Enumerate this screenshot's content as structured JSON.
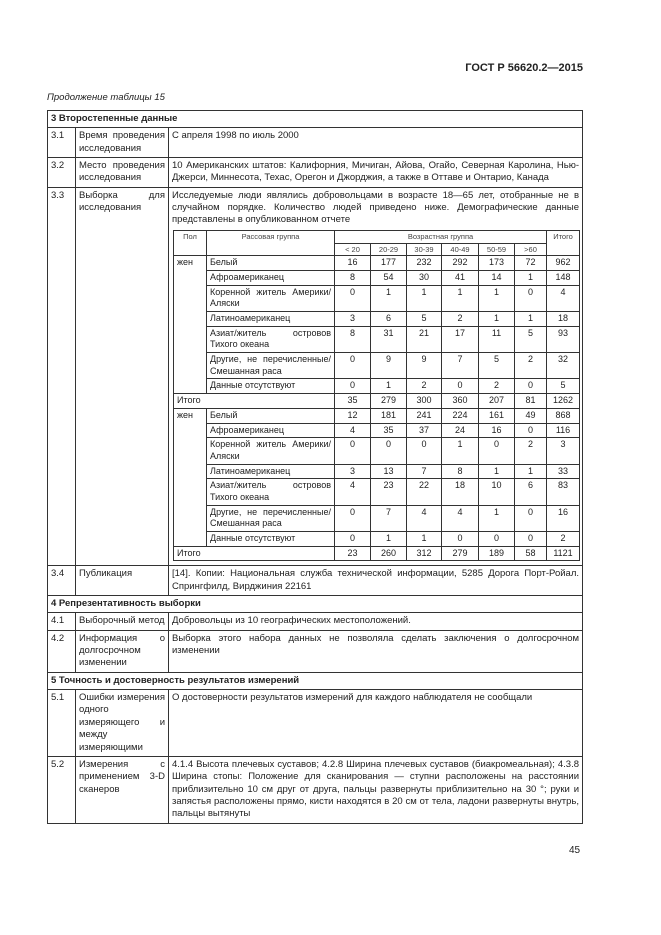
{
  "header": {
    "doc_id": "ГОСТ Р 56620.2—2015",
    "continuation": "Продолжение таблицы 15"
  },
  "table": {
    "sections": [
      {
        "title": "3 Второстепенные данные",
        "rows": [
          {
            "num": "3.1",
            "label": "Время проведения исследования",
            "content": "С апреля 1998 по июль 2000"
          },
          {
            "num": "3.2",
            "label": "Место проведения исследования",
            "content": "10 Американских штатов: Калифорния, Мичиган, Айова, Огайо, Северная Каролина, Нью-Джерси, Миннесота, Техас, Орегон и Джорджия, а также в Оттаве и Онтарио, Канада"
          },
          {
            "num": "3.3",
            "label": "Выборка для исследования",
            "content": "Исследуемые люди являлись добровольцами в возрасте 18—65 лет, отобранные не в случайном порядке. Количество людей приведено ниже. Демографические данные представлены в опубликованном отчете",
            "sample_table": {
              "sex_header": "Пол",
              "group_header": "Рассовая группа",
              "age_header": "Возрастная группа",
              "age_groups": [
                "< 20",
                "20-29",
                "30-39",
                "40-49",
                "50-59",
                ">60"
              ],
              "total_header": "Итого",
              "blocks": [
                {
                  "sex": "жен",
                  "rows": [
                    {
                      "group": "Белый",
                      "values": [
                        16,
                        177,
                        232,
                        292,
                        173,
                        72
                      ],
                      "total": 962
                    },
                    {
                      "group": "Афроамериканец",
                      "values": [
                        8,
                        54,
                        30,
                        41,
                        14,
                        1
                      ],
                      "total": 148
                    },
                    {
                      "group": "Коренной житель Америки/Аляски",
                      "values": [
                        0,
                        1,
                        1,
                        1,
                        1,
                        0
                      ],
                      "total": 4
                    },
                    {
                      "group": "Латиноамериканец",
                      "values": [
                        3,
                        6,
                        5,
                        2,
                        1,
                        1
                      ],
                      "total": 18
                    },
                    {
                      "group": "Азиат/житель островов Тихого океана",
                      "values": [
                        8,
                        31,
                        21,
                        17,
                        11,
                        5
                      ],
                      "total": 93
                    },
                    {
                      "group": "Другие, не перечисленные/Смешанная раса",
                      "values": [
                        0,
                        9,
                        9,
                        7,
                        5,
                        2
                      ],
                      "total": 32
                    },
                    {
                      "group": "Данные отсутствуют",
                      "values": [
                        0,
                        1,
                        2,
                        0,
                        2,
                        0
                      ],
                      "total": 5
                    }
                  ],
                  "total_label": "Итого",
                  "totals": [
                    35,
                    279,
                    300,
                    360,
                    207,
                    81
                  ],
                  "grand_total": 1262
                },
                {
                  "sex": "жен",
                  "rows": [
                    {
                      "group": "Белый",
                      "values": [
                        12,
                        181,
                        241,
                        224,
                        161,
                        49
                      ],
                      "total": 868
                    },
                    {
                      "group": "Афроамериканец",
                      "values": [
                        4,
                        35,
                        37,
                        24,
                        16,
                        0
                      ],
                      "total": 116
                    },
                    {
                      "group": "Коренной житель Америки/Аляски",
                      "values": [
                        0,
                        0,
                        0,
                        1,
                        0,
                        2
                      ],
                      "total": 3
                    },
                    {
                      "group": "Латиноамериканец",
                      "values": [
                        3,
                        13,
                        7,
                        8,
                        1,
                        1
                      ],
                      "total": 33
                    },
                    {
                      "group": "Азиат/житель островов Тихого океана",
                      "values": [
                        4,
                        23,
                        22,
                        18,
                        10,
                        6
                      ],
                      "total": 83
                    },
                    {
                      "group": "Другие, не перечисленные/Смешанная раса",
                      "values": [
                        0,
                        7,
                        4,
                        4,
                        1,
                        0
                      ],
                      "total": 16
                    },
                    {
                      "group": "Данные отсутствуют",
                      "values": [
                        0,
                        1,
                        1,
                        0,
                        0,
                        0
                      ],
                      "total": 2
                    }
                  ],
                  "total_label": "Итого",
                  "totals": [
                    23,
                    260,
                    312,
                    279,
                    189,
                    58
                  ],
                  "grand_total": 1121
                }
              ]
            }
          },
          {
            "num": "3.4",
            "label": "Публикация",
            "content": "[14]. Копии: Национальная служба технической информации, 5285 Дорога Порт-Ройал. Спрингфилд, Вирджиния 22161"
          }
        ]
      },
      {
        "title": "4 Репрезентативность выборки",
        "rows": [
          {
            "num": "4.1",
            "label": "Выборочный метод",
            "content": "Добровольцы из 10 географических местоположений."
          },
          {
            "num": "4.2",
            "label": "Информация о долгосрочном изменении",
            "content": "Выборка этого набора данных не позволяла сделать заключения о долгосрочном изменении"
          }
        ]
      },
      {
        "title": "5 Точность и достоверность результатов измерений",
        "rows": [
          {
            "num": "5.1",
            "label": "Ошибки измерения одного измеряющего и между измеряющими",
            "content": "О достоверности результатов измерений для каждого наблюдателя не сообщали"
          },
          {
            "num": "5.2",
            "label": "Измерения с применением 3-D сканеров",
            "content": "4.1.4 Высота плечевых суставов; 4.2.8 Ширина плечевых суставов (биакромеальная); 4.3.8 Ширина стопы: Положение для сканирования — ступни расположены на расстоянии приблизительно 10 см друг от друга, пальцы развернуты приблизительно на 30 °; руки и запястья расположены прямо, кисти находятся в 20 см от тела, ладони развернуты внутрь, пальцы вытянуты"
          }
        ]
      }
    ]
  },
  "footer": {
    "page_number": "45"
  }
}
